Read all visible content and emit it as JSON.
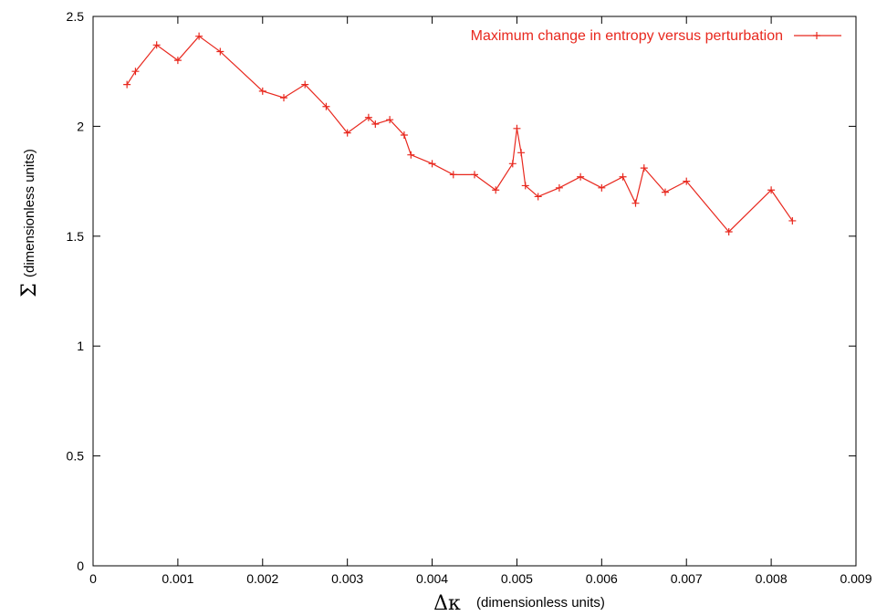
{
  "chart_data": {
    "type": "line",
    "title": "",
    "xlabel_symbol": "Δκ",
    "xlabel_unit": "(dimensionless units)",
    "ylabel_symbol": "Σ",
    "ylabel_unit": "(dimensionless units)",
    "xlim": [
      0,
      0.009
    ],
    "ylim": [
      0,
      2.5
    ],
    "x_ticks": [
      0,
      0.001,
      0.002,
      0.003,
      0.004,
      0.005,
      0.006,
      0.007,
      0.008,
      0.009
    ],
    "x_tick_labels": [
      "0",
      "0.001",
      "0.002",
      "0.003",
      "0.004",
      "0.005",
      "0.006",
      "0.007",
      "0.008",
      "0.009"
    ],
    "y_ticks": [
      0,
      0.5,
      1,
      1.5,
      2,
      2.5
    ],
    "y_tick_labels": [
      "0",
      "0.5",
      "1",
      "1.5",
      "2",
      "2.5"
    ],
    "grid": false,
    "legend_position": "top-right",
    "series": [
      {
        "name": "Maximum change in entropy versus perturbation",
        "color": "#e8281e",
        "marker": "plus",
        "points": [
          [
            0.0004,
            2.19
          ],
          [
            0.0005,
            2.25
          ],
          [
            0.00075,
            2.37
          ],
          [
            0.001,
            2.3
          ],
          [
            0.00125,
            2.41
          ],
          [
            0.0015,
            2.34
          ],
          [
            0.002,
            2.16
          ],
          [
            0.00225,
            2.13
          ],
          [
            0.0025,
            2.19
          ],
          [
            0.00275,
            2.09
          ],
          [
            0.003,
            1.97
          ],
          [
            0.00325,
            2.04
          ],
          [
            0.00333,
            2.01
          ],
          [
            0.0035,
            2.03
          ],
          [
            0.00367,
            1.96
          ],
          [
            0.00375,
            1.87
          ],
          [
            0.004,
            1.83
          ],
          [
            0.00425,
            1.78
          ],
          [
            0.0045,
            1.78
          ],
          [
            0.00475,
            1.71
          ],
          [
            0.00495,
            1.83
          ],
          [
            0.005,
            1.99
          ],
          [
            0.00505,
            1.88
          ],
          [
            0.0051,
            1.73
          ],
          [
            0.00525,
            1.68
          ],
          [
            0.0055,
            1.72
          ],
          [
            0.00575,
            1.77
          ],
          [
            0.006,
            1.72
          ],
          [
            0.00625,
            1.77
          ],
          [
            0.0064,
            1.65
          ],
          [
            0.0065,
            1.81
          ],
          [
            0.00675,
            1.7
          ],
          [
            0.007,
            1.75
          ],
          [
            0.0075,
            1.52
          ],
          [
            0.008,
            1.71
          ],
          [
            0.00825,
            1.57
          ]
        ]
      }
    ]
  }
}
